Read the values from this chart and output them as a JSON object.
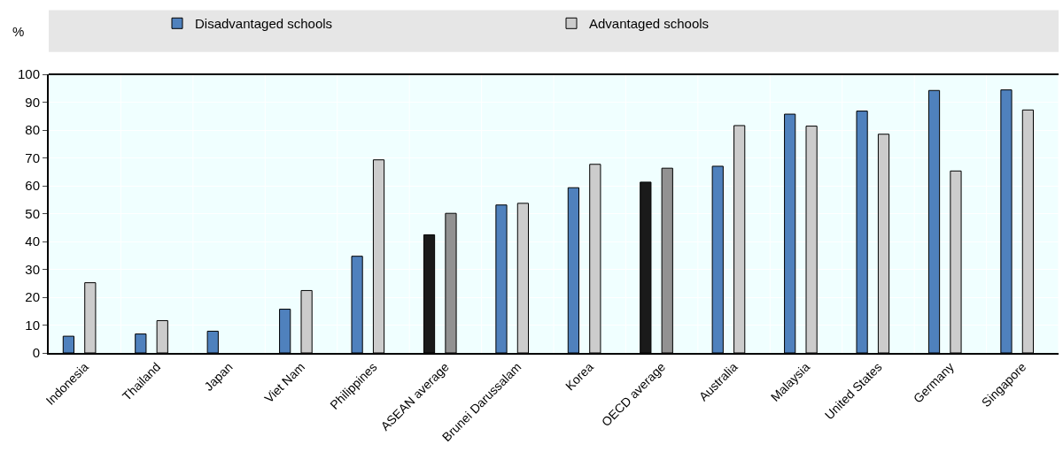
{
  "chart_data": {
    "type": "bar",
    "ylabel": "%",
    "categories": [
      "Indonesia",
      "Thailand",
      "Japan",
      "Viet Nam",
      "Philippines",
      "ASEAN average",
      "Brunei Darussalam",
      "Korea",
      "OECD average",
      "Australia",
      "Malaysia",
      "United States",
      "Germany",
      "Singapore"
    ],
    "series": [
      {
        "name": "Disadvantaged schools",
        "color": "#4f81bd",
        "colors": [
          "#4f81bd",
          "#4f81bd",
          "#4f81bd",
          "#4f81bd",
          "#4f81bd",
          "#1a1a1a",
          "#4f81bd",
          "#4f81bd",
          "#1a1a1a",
          "#4f81bd",
          "#4f81bd",
          "#4f81bd",
          "#4f81bd",
          "#4f81bd"
        ],
        "values": [
          6.0,
          6.8,
          7.8,
          15.7,
          34.7,
          42.4,
          53.1,
          59.3,
          61.3,
          67.0,
          85.7,
          86.8,
          94.2,
          94.4
        ]
      },
      {
        "name": "Advantaged schools",
        "color": "#cccccc",
        "colors": [
          "#cccccc",
          "#cccccc",
          "#cccccc",
          "#cccccc",
          "#cccccc",
          "#929292",
          "#cccccc",
          "#cccccc",
          "#929292",
          "#cccccc",
          "#cccccc",
          "#cccccc",
          "#cccccc",
          "#cccccc"
        ],
        "values": [
          25.2,
          11.6,
          null,
          22.4,
          69.3,
          50.1,
          53.7,
          67.7,
          66.3,
          81.6,
          81.4,
          78.5,
          65.3,
          87.2
        ]
      }
    ],
    "ylim": [
      0,
      100
    ],
    "yticks": [
      0,
      10,
      20,
      30,
      40,
      50,
      60,
      70,
      80,
      90,
      100
    ],
    "grid": true,
    "legend": "top"
  }
}
